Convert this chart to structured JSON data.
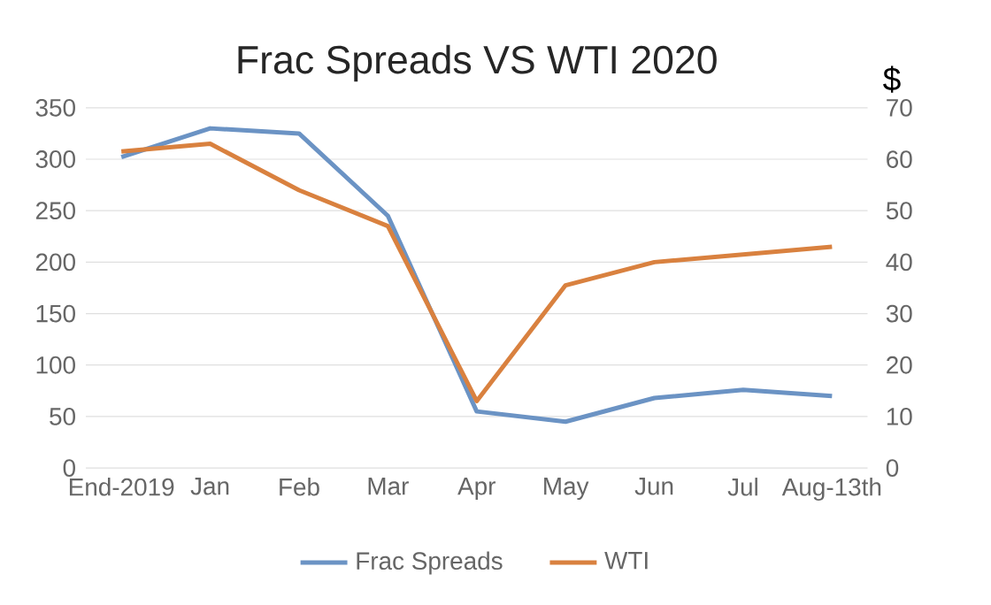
{
  "chart_data": {
    "type": "line",
    "title": "Frac Spreads VS WTI 2020",
    "y2label": "$",
    "categories": [
      "End-2019",
      "Jan",
      "Feb",
      "Mar",
      "Apr",
      "May",
      "Jun",
      "Jul",
      "Aug-13th"
    ],
    "series": [
      {
        "name": "Frac Spreads",
        "color": "#6b93c4",
        "values": [
          302,
          330,
          325,
          245,
          55,
          45,
          68,
          76,
          70
        ]
      },
      {
        "name": "WTI",
        "color": "#d9813f",
        "axis": "y2",
        "values": [
          61.5,
          63,
          54,
          47,
          13,
          35.5,
          40,
          41.5,
          43
        ]
      }
    ],
    "ylim": [
      0,
      350
    ],
    "yticks": [
      0,
      50,
      100,
      150,
      200,
      250,
      300,
      350
    ],
    "y2lim": [
      0,
      70
    ],
    "y2ticks": [
      0,
      10,
      20,
      30,
      40,
      50,
      60,
      70
    ],
    "grid": "y",
    "legend": "bottom",
    "marker": "none",
    "line_style": "solid"
  }
}
